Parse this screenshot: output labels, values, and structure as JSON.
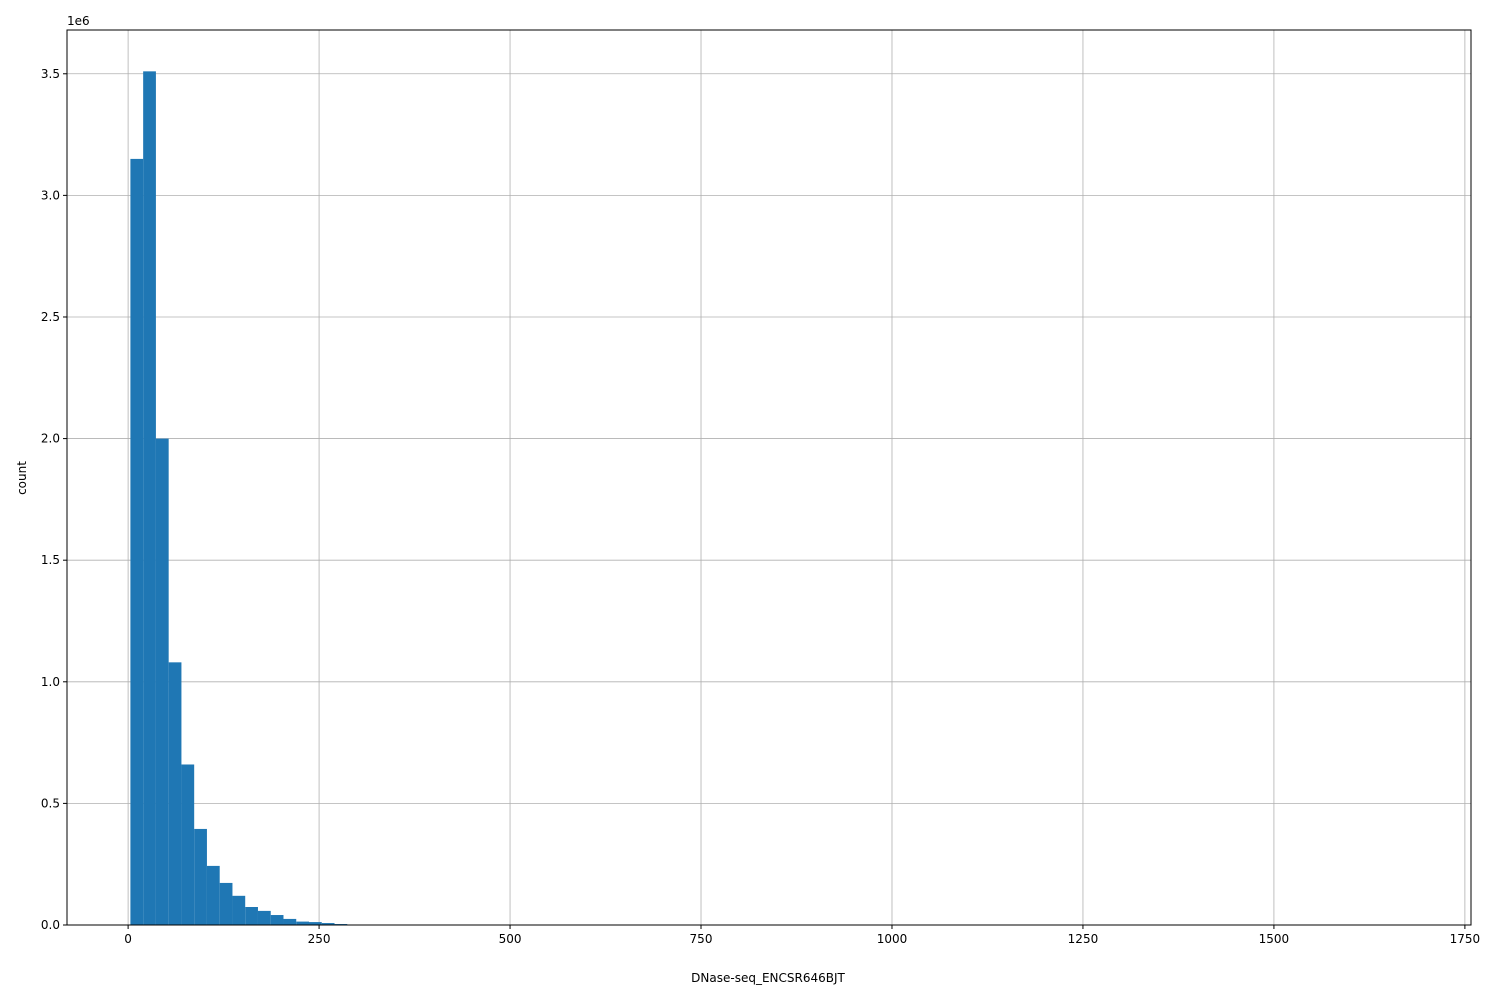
{
  "chart_data": {
    "type": "bar",
    "subtype": "histogram",
    "title": "",
    "xlabel": "DNase-seq_ENCSR646BJT",
    "ylabel": "count",
    "y_offset_label": "1e6",
    "xlim": [
      -80,
      1758
    ],
    "ylim": [
      0,
      3680000
    ],
    "grid": true,
    "color": "#1f77b4",
    "bin_start": 3,
    "bin_width": 16.7,
    "values": [
      3150000,
      3510000,
      2000000,
      1080000,
      660000,
      395000,
      243000,
      173000,
      120000,
      74000,
      58000,
      41000,
      25000,
      14000,
      12000,
      8000,
      4000,
      2000,
      1000,
      500,
      300,
      200,
      100,
      0,
      0,
      0,
      0,
      0,
      0,
      0,
      0,
      0,
      0,
      0,
      0,
      0,
      0,
      0,
      0,
      0,
      0,
      0,
      0,
      0,
      0,
      0,
      0,
      0,
      0,
      0,
      0,
      0,
      0,
      0,
      0,
      0,
      0,
      0,
      0,
      0,
      0,
      0,
      0,
      0,
      0,
      0,
      0,
      0,
      0,
      0,
      0,
      0,
      0,
      0,
      0,
      0,
      0,
      0,
      0,
      0,
      0,
      0,
      0,
      0,
      0,
      0,
      0,
      0,
      0,
      0,
      0,
      0,
      0,
      0,
      0,
      0,
      0,
      0,
      0,
      0
    ],
    "x_ticks": [
      0,
      250,
      500,
      750,
      1000,
      1250,
      1500,
      1750
    ],
    "x_tick_labels": [
      "0",
      "250",
      "500",
      "750",
      "1000",
      "1250",
      "1500",
      "1750"
    ],
    "y_ticks": [
      0,
      500000,
      1000000,
      1500000,
      2000000,
      2500000,
      3000000,
      3500000
    ],
    "y_tick_labels": [
      "0.0",
      "0.5",
      "1.0",
      "1.5",
      "2.0",
      "2.5",
      "3.0",
      "3.5"
    ]
  }
}
